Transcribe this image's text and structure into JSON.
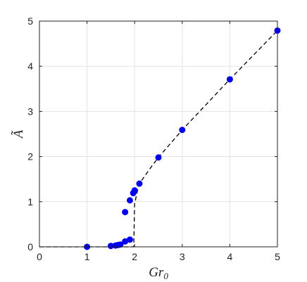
{
  "chart_data": {
    "type": "scatter",
    "title": "",
    "xlabel": "Gr",
    "xlabel_sub": "0",
    "ylabel": "Ã",
    "xlim": [
      0,
      5
    ],
    "ylim": [
      0,
      5
    ],
    "xticks": [
      "0",
      "1",
      "2",
      "3",
      "4",
      "5"
    ],
    "yticks": [
      "0",
      "1",
      "2",
      "3",
      "4",
      "5"
    ],
    "grid": true,
    "marker_color": "#0000ee",
    "line_color": "#000000",
    "series": [
      {
        "kind": "points",
        "x": [
          1.0,
          1.5,
          1.6,
          1.65,
          1.7,
          1.8,
          1.8,
          1.9,
          1.9,
          1.97,
          2.0,
          2.1,
          2.5,
          3.0,
          4.0,
          5.0
        ],
        "y": [
          0.0,
          0.02,
          0.03,
          0.04,
          0.05,
          0.12,
          0.77,
          0.16,
          1.03,
          1.19,
          1.25,
          1.4,
          1.98,
          2.59,
          3.71,
          4.79
        ]
      },
      {
        "kind": "dashed-line",
        "x": [
          0.0,
          1.0,
          1.5,
          1.7,
          1.85,
          1.93,
          1.96,
          1.98,
          2.0,
          2.05,
          2.1,
          2.3,
          2.5,
          3.0,
          3.5,
          4.0,
          4.5,
          5.0
        ],
        "y": [
          0.0,
          0.0,
          0.0,
          0.0,
          0.0,
          0.0,
          0.0,
          0.0,
          0.95,
          1.2,
          1.4,
          1.7,
          1.98,
          2.59,
          3.15,
          3.71,
          4.25,
          4.79
        ]
      }
    ]
  }
}
